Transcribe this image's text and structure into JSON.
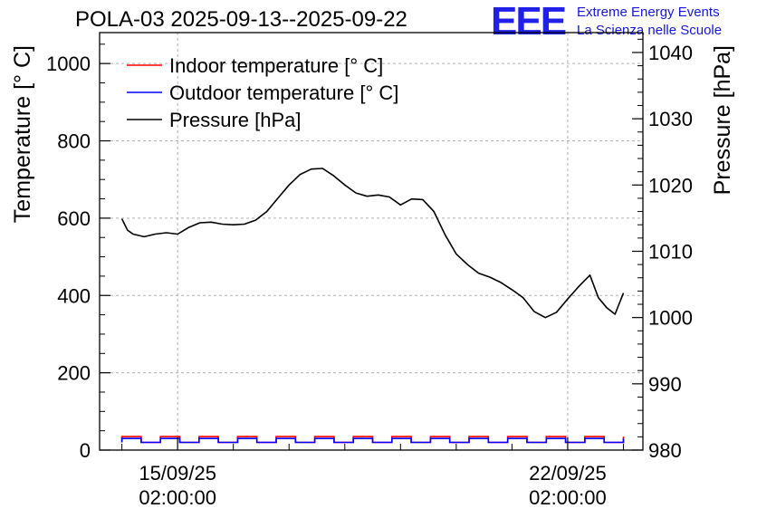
{
  "title": "POLA-03 2025-09-13--2025-09-22",
  "logo": {
    "mark": "EEE",
    "line1": "Extreme Energy Events",
    "line2": "La Scienza nelle Scuole"
  },
  "colors": {
    "indoor": "#ff0000",
    "outdoor": "#0000ff",
    "pressure": "#000000",
    "grid": "#b0b0b0",
    "logo": "#2020e8"
  },
  "chart_data": {
    "type": "line",
    "xlabel": "",
    "ylabel": "Temperature [° C]",
    "ylabel_right": "Pressure [hPa]",
    "ylim": [
      0,
      1080
    ],
    "ylim_right": [
      980,
      1043
    ],
    "yticks": [
      0,
      200,
      400,
      600,
      800,
      1000
    ],
    "yticks_right": [
      980,
      990,
      1000,
      1010,
      1020,
      1030,
      1040
    ],
    "xlim": [
      -1.4,
      8.35
    ],
    "xticks": [
      {
        "x": 0,
        "line1": "15/09/25",
        "line2": "02:00:00"
      },
      {
        "x": 7,
        "line1": "22/09/25",
        "line2": "02:00:00"
      }
    ],
    "grid": true,
    "legend_position": "top-left",
    "series": [
      {
        "name": "Indoor temperature [° C]",
        "axis": "left",
        "x": [
          -1.0,
          8.0
        ],
        "values": [
          35,
          35
        ],
        "min_values": [
          20,
          20
        ],
        "note_style": "square-wave"
      },
      {
        "name": "Outdoor temperature [° C]",
        "axis": "left",
        "x": [
          -1.0,
          8.0
        ],
        "values": [
          30,
          30
        ],
        "min_values": [
          20,
          20
        ],
        "note_style": "square-wave"
      },
      {
        "name": "Pressure [hPa]",
        "axis": "right",
        "x": [
          -1.0,
          -0.9,
          -0.8,
          -0.6,
          -0.4,
          -0.2,
          0.0,
          0.2,
          0.4,
          0.6,
          0.8,
          1.0,
          1.2,
          1.4,
          1.6,
          1.8,
          2.0,
          2.2,
          2.4,
          2.6,
          2.8,
          3.0,
          3.2,
          3.4,
          3.6,
          3.8,
          4.0,
          4.2,
          4.4,
          4.6,
          4.8,
          5.0,
          5.2,
          5.4,
          5.6,
          5.8,
          6.0,
          6.2,
          6.4,
          6.6,
          6.8,
          7.0,
          7.2,
          7.4,
          7.55,
          7.7,
          7.85,
          8.0
        ],
        "values": [
          1014.9,
          1013.2,
          1012.6,
          1012.2,
          1012.6,
          1012.8,
          1012.6,
          1013.6,
          1014.3,
          1014.4,
          1014.1,
          1014.0,
          1014.1,
          1014.7,
          1016.0,
          1018.0,
          1020.0,
          1021.6,
          1022.4,
          1022.5,
          1021.4,
          1020.0,
          1018.8,
          1018.3,
          1018.5,
          1018.2,
          1017.0,
          1017.9,
          1017.8,
          1016.0,
          1012.5,
          1009.6,
          1008.0,
          1006.7,
          1006.1,
          1005.3,
          1004.2,
          1003.0,
          1000.9,
          1000.0,
          1000.8,
          1002.8,
          1004.7,
          1006.4,
          1003.0,
          1001.5,
          1000.5,
          1003.7
        ]
      }
    ]
  }
}
